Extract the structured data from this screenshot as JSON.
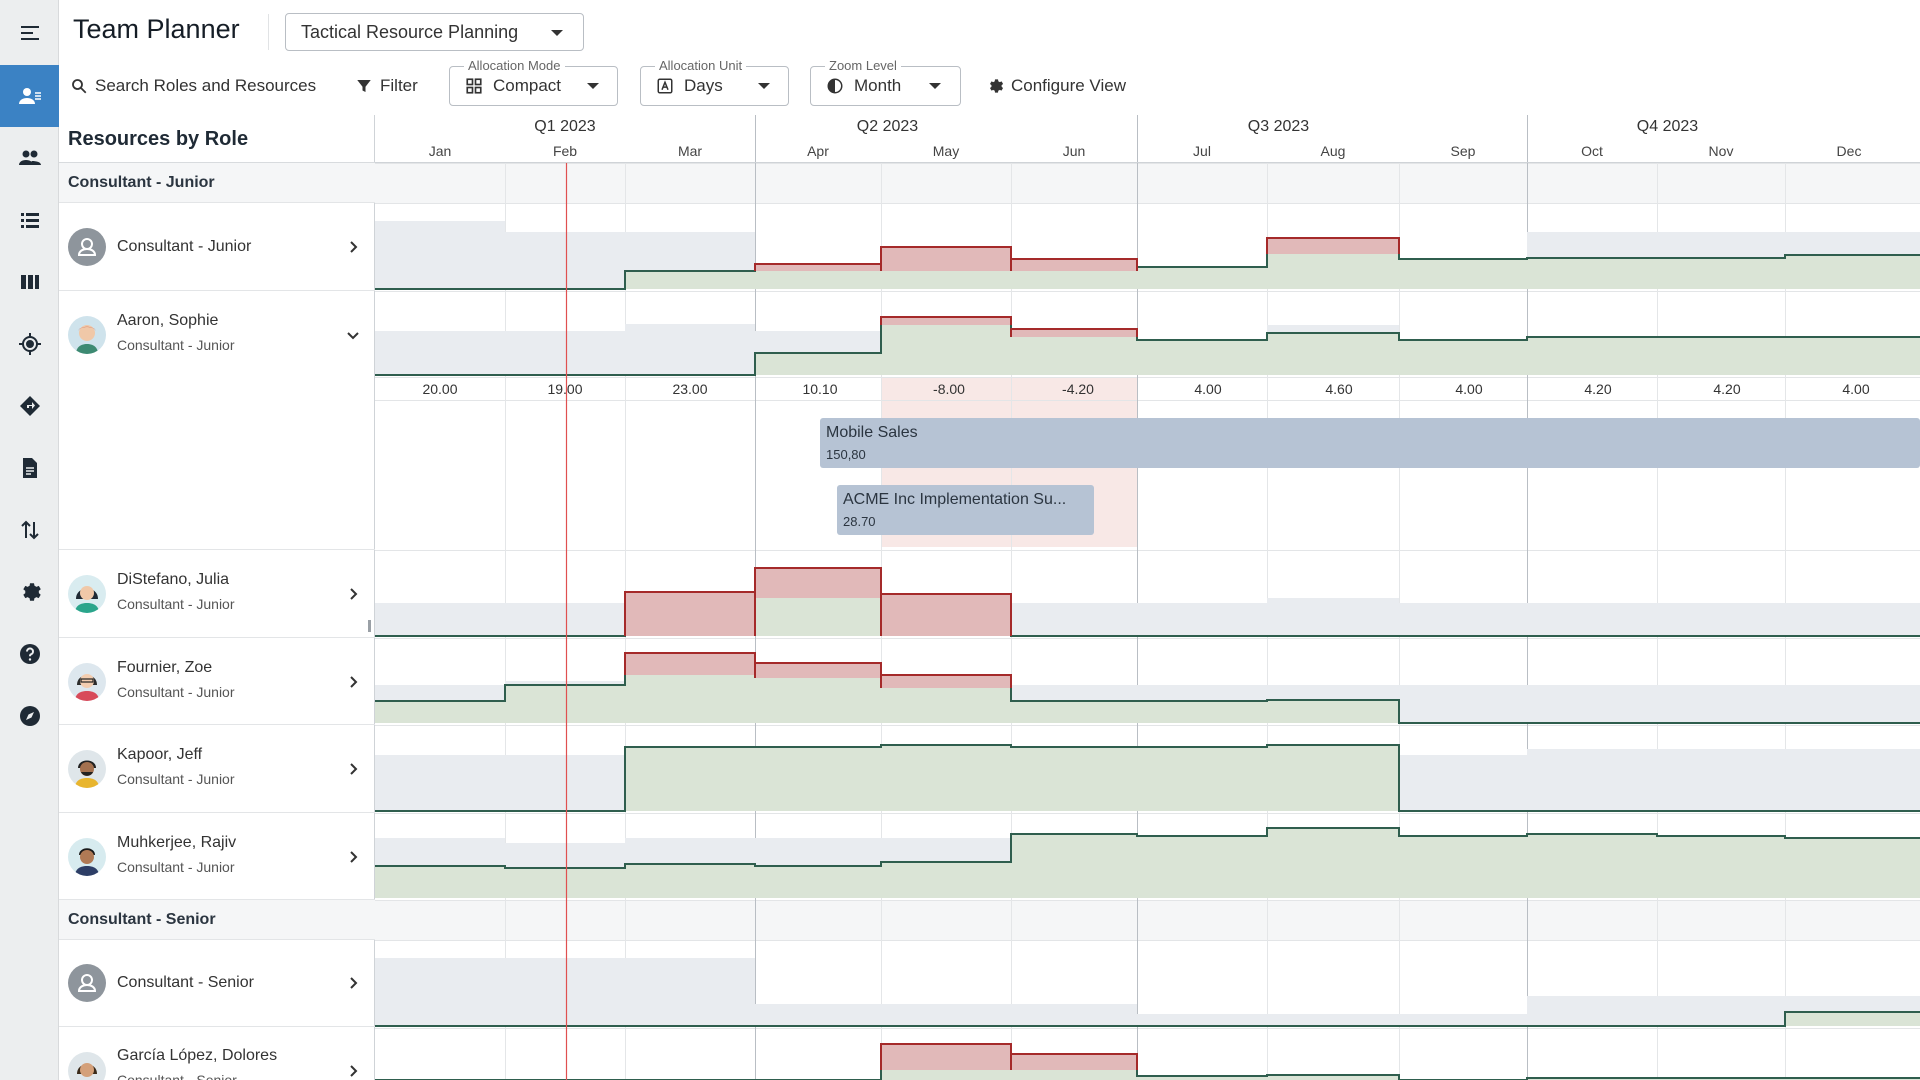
{
  "app": {
    "title": "Team Planner",
    "plan_select": "Tactical Resource Planning"
  },
  "rail": {
    "icons": [
      "collapse-menu-icon",
      "team-planner-icon",
      "people-icon",
      "list-icon",
      "board-icon",
      "target-icon",
      "directions-icon",
      "document-icon",
      "sort-arrows-icon",
      "settings-icon",
      "help-icon",
      "explore-icon"
    ]
  },
  "toolbar": {
    "search_label": "Search Roles and Resources",
    "filter_label": "Filter",
    "allocation_mode": {
      "label": "Allocation Mode",
      "value": "Compact"
    },
    "allocation_unit": {
      "label": "Allocation Unit",
      "value": "Days"
    },
    "zoom_level": {
      "label": "Zoom Level",
      "value": "Month"
    },
    "configure_label": "Configure View"
  },
  "panel": {
    "title": "Resources by Role"
  },
  "timeline": {
    "quarters": [
      "Q1 2023",
      "Q2 2023",
      "Q3 2023",
      "Q4 2023"
    ],
    "months": [
      "Jan",
      "Feb",
      "Mar",
      "Apr",
      "May",
      "Jun",
      "Jul",
      "Aug",
      "Sep",
      "Oct",
      "Nov",
      "Dec"
    ]
  },
  "groups": [
    {
      "name": "Consultant - Junior"
    },
    {
      "name": "Consultant - Senior"
    }
  ],
  "resources": [
    {
      "name": "Consultant - Junior",
      "role": "",
      "generic": true
    },
    {
      "name": "Aaron, Sophie",
      "role": "Consultant - Junior",
      "expanded": true
    },
    {
      "name": "DiStefano, Julia",
      "role": "Consultant - Junior"
    },
    {
      "name": "Fournier, Zoe",
      "role": "Consultant - Junior"
    },
    {
      "name": "Kapoor, Jeff",
      "role": "Consultant - Junior"
    },
    {
      "name": "Muhkerjee, Rajiv",
      "role": "Consultant - Junior"
    },
    {
      "name": "Consultant - Senior",
      "role": "",
      "generic": true
    },
    {
      "name": "García López, Dolores",
      "role": "Consultant - Senior"
    }
  ],
  "monthly_values": [
    "20.00",
    "19.00",
    "23.00",
    "10.10",
    "-8.00",
    "-4.20",
    "4.00",
    "4.60",
    "4.00",
    "4.20",
    "4.20",
    "4.00"
  ],
  "assignments": [
    {
      "title": "Mobile Sales",
      "value": "150,80"
    },
    {
      "title": "ACME Inc Implementation Su...",
      "value": "28.70"
    }
  ],
  "colors": {
    "accent": "#3b82c4",
    "over": "#e1b9b9",
    "under": "#dae4d6",
    "capacity": "#e9ecf0",
    "over_line": "#a52a2a",
    "under_line": "#2f5e4e",
    "today_line": "#e05050"
  }
}
